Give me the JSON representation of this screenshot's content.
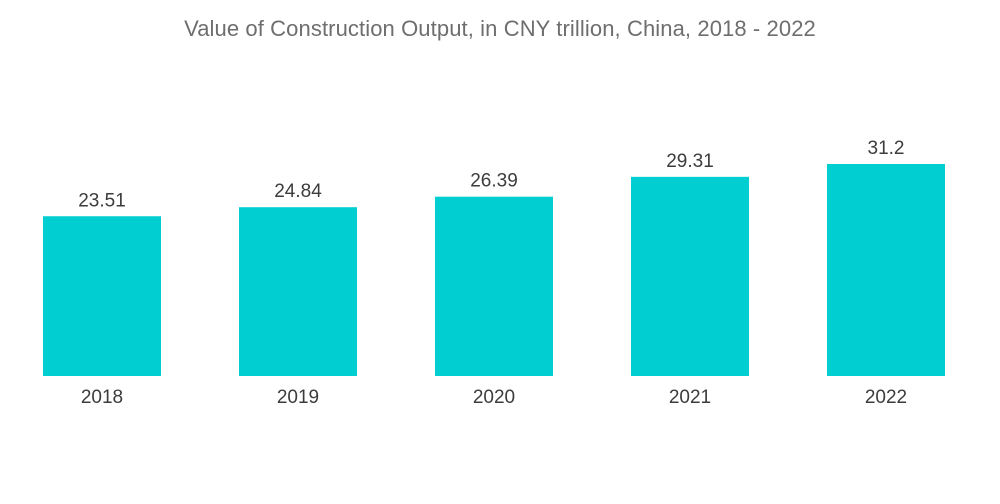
{
  "chart_data": {
    "type": "bar",
    "title": "Value of Construction Output, in CNY trillion, China, 2018 - 2022",
    "categories": [
      "2018",
      "2019",
      "2020",
      "2021",
      "2022"
    ],
    "values": [
      23.51,
      24.84,
      26.39,
      29.31,
      31.2
    ],
    "value_labels": [
      "23.51",
      "24.84",
      "26.39",
      "29.31",
      "31.2"
    ],
    "xlabel": "",
    "ylabel": "",
    "ylim": [
      0,
      31.2
    ],
    "grid": false,
    "legend": "none",
    "bar_color": "#00ced1"
  }
}
